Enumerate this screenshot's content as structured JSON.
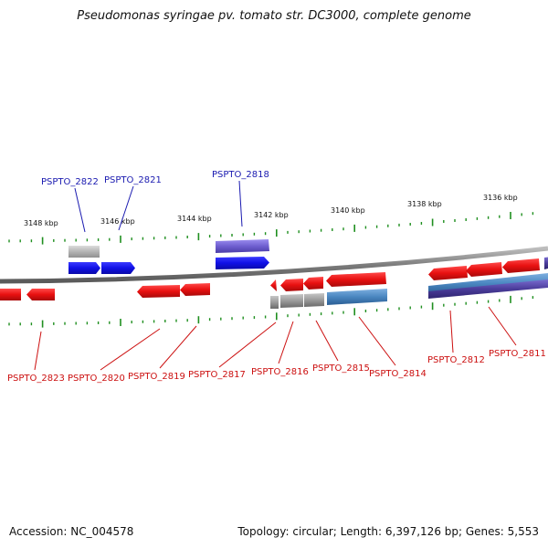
{
  "title": "Pseudomonas syringae pv. tomato str. DC3000, complete genome",
  "footer": {
    "accession": "Accession: NC_004578",
    "summary": "Topology: circular; Length: 6,397,126 bp; Genes: 5,553"
  },
  "colors": {
    "gene_forward": "#1515e0",
    "gene_reverse": "#e01515",
    "cds_purple": "#7060c8",
    "cds_grey": "#8f8f8f",
    "cds_steel": "#4a86c0",
    "cds_dark": "#4a3c9a",
    "label_top": "#1a1ab0",
    "label_bottom": "#cc1010",
    "tick": "#1f8f1f",
    "backbone": "#8a8a8a"
  },
  "kbp_labels": [
    "3148 kbp",
    "3146 kbp",
    "3144 kbp",
    "3142 kbp",
    "3140 kbp",
    "3138 kbp",
    "3136 kbp"
  ],
  "top_labels": [
    {
      "text": "PSPTO_2822"
    },
    {
      "text": "PSPTO_2821"
    },
    {
      "text": "PSPTO_2818"
    }
  ],
  "bottom_labels": [
    {
      "text": "PSPTO_2823"
    },
    {
      "text": "PSPTO_2820"
    },
    {
      "text": "PSPTO_2819"
    },
    {
      "text": "PSPTO_2817"
    },
    {
      "text": "PSPTO_2816"
    },
    {
      "text": "PSPTO_2815"
    },
    {
      "text": "PSPTO_2814"
    },
    {
      "text": "PSPTO_2812"
    },
    {
      "text": "PSPTO_2811"
    }
  ]
}
